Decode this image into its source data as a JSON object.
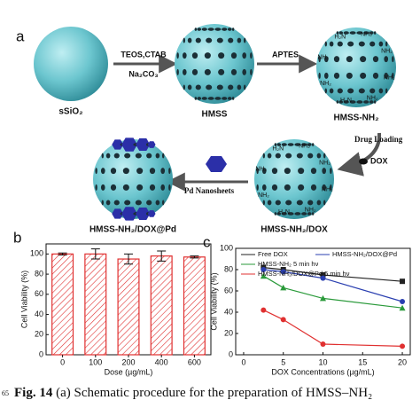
{
  "schematic": {
    "panel_label": "a",
    "sphere_labels": [
      "sSiO₂",
      "HMSS",
      "HMSS-NH₂",
      "HMSS-NH₂/DOX",
      "HMSS-NH₂/DOX@Pd"
    ],
    "steps": [
      "TEOS,CTAB",
      "Na₂CO₃",
      "APTES",
      "Drug Loading",
      "DOX",
      "Pd Nanosheets"
    ],
    "amine_labels": [
      "NH₂",
      "NH₂",
      "H₂N",
      "NH₂",
      "NH₂",
      "H₂N",
      "NH₂",
      "NH₂"
    ]
  },
  "chart_data": [
    {
      "type": "bar",
      "panel_label": "b",
      "x_label": "Dose (µg/mL)",
      "y_label": "Cell Viability (%)",
      "categories": [
        "0",
        "100",
        "200",
        "400",
        "600"
      ],
      "values": [
        100,
        100,
        95,
        98,
        97
      ],
      "errors": [
        1,
        5,
        5,
        5,
        1
      ],
      "color": "#e03030",
      "ylim": [
        0,
        110
      ],
      "yticks": [
        0,
        20,
        40,
        60,
        80,
        100
      ]
    },
    {
      "type": "line",
      "panel_label": "c",
      "x_label": "DOX Concentrations (µg/mL)",
      "y_label": "Cell Viability (%)",
      "x": [
        2.5,
        5,
        10,
        20
      ],
      "xlim": [
        -1,
        21
      ],
      "xticks": [
        0,
        5,
        10,
        15,
        20
      ],
      "ylim": [
        0,
        100
      ],
      "yticks": [
        0,
        20,
        40,
        60,
        80,
        100
      ],
      "series": [
        {
          "name": "Free DOX",
          "color": "#222222",
          "marker": "square",
          "values": [
            82,
            80,
            75,
            69
          ]
        },
        {
          "name": "HMSS-NH₂/DOX@Pd",
          "color": "#2a3fb0",
          "marker": "circle",
          "values": [
            80,
            78,
            72,
            50
          ]
        },
        {
          "name": "HMSS-NH₂ 5 min hν",
          "color": "#2a9a3a",
          "marker": "triangle",
          "values": [
            74,
            63,
            53,
            44
          ]
        },
        {
          "name": "HMSS-NH₂/DOX@Pd 5 min hν",
          "color": "#e03030",
          "marker": "circle",
          "values": [
            42,
            33,
            10,
            8
          ]
        }
      ]
    }
  ],
  "caption": {
    "line_number": "65",
    "label": "Fig. 14",
    "text": "(a) Schematic procedure for the preparation of HMSS–NH₂"
  }
}
